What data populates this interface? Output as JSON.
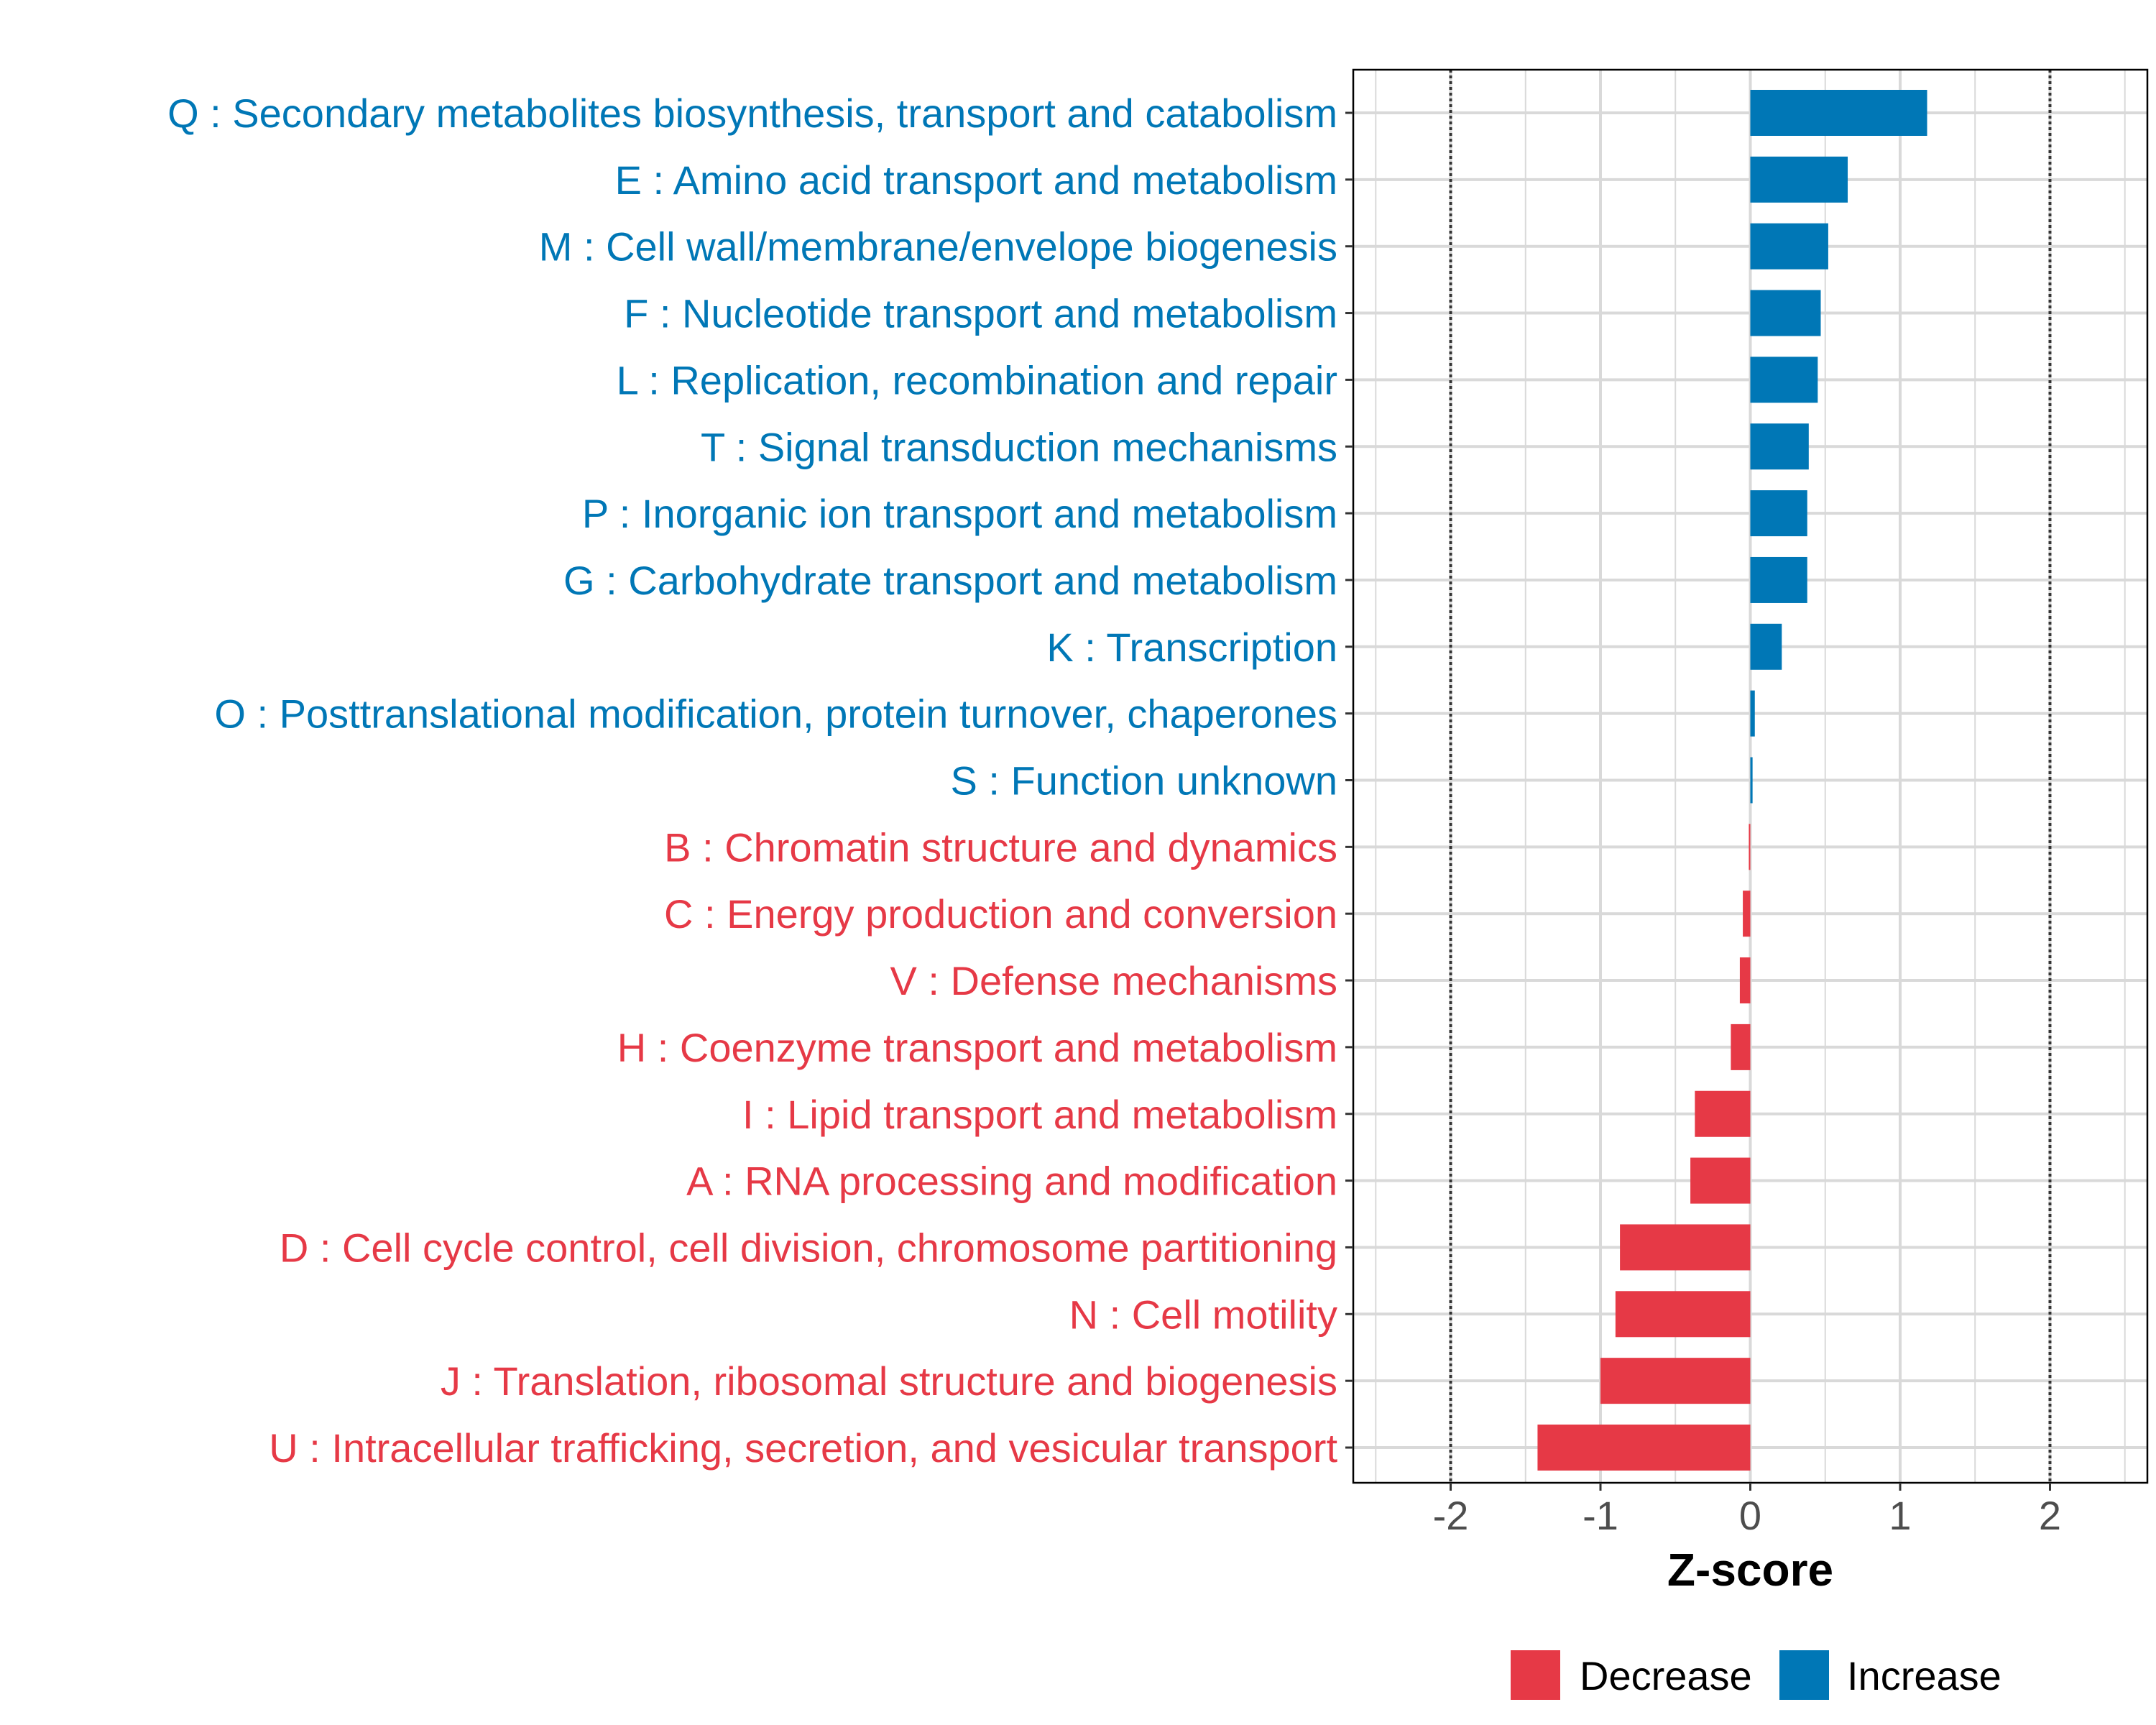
{
  "chart_data": {
    "type": "bar",
    "orientation": "horizontal",
    "title": "",
    "xlabel": "Z-score",
    "ylabel": "",
    "xlim": [
      -2.65,
      2.65
    ],
    "xticks": [
      -2,
      -1,
      0,
      1,
      2
    ],
    "xtick_labels": [
      "-2",
      "-1",
      "0",
      "1",
      "2"
    ],
    "reference_lines": [
      -2,
      2
    ],
    "grid": true,
    "categories": [
      "Q : Secondary metabolites biosynthesis, transport and catabolism",
      "E : Amino acid transport and metabolism",
      "M : Cell wall/membrane/envelope biogenesis",
      "F : Nucleotide transport and metabolism",
      "L : Replication, recombination and repair",
      "T : Signal transduction mechanisms",
      "P : Inorganic ion transport and metabolism",
      "G : Carbohydrate transport and metabolism",
      "K : Transcription",
      "O : Posttranslational modification, protein turnover, chaperones",
      "S : Function unknown",
      "B : Chromatin structure and dynamics",
      "C : Energy production and conversion",
      "V : Defense mechanisms",
      "H : Coenzyme transport and metabolism",
      "I : Lipid transport and metabolism",
      "A : RNA processing and modification",
      "D : Cell cycle control, cell division, chromosome partitioning",
      "N : Cell motility",
      "J : Translation, ribosomal structure and biogenesis",
      "U : Intracellular trafficking, secretion, and vesicular transport"
    ],
    "values": [
      1.18,
      0.65,
      0.52,
      0.47,
      0.45,
      0.39,
      0.38,
      0.38,
      0.21,
      0.03,
      0.015,
      -0.01,
      -0.05,
      -0.07,
      -0.13,
      -0.37,
      -0.4,
      -0.87,
      -0.9,
      -1.0,
      -1.42
    ],
    "legend": {
      "position": "bottom",
      "entries": [
        {
          "label": "Decrease",
          "color": "#E63946"
        },
        {
          "label": "Increase",
          "color": "#0077B6"
        }
      ]
    },
    "colors": {
      "increase": "#0077B6",
      "decrease": "#E63946",
      "grid": "#d9d9d9",
      "axis": "#000000",
      "tick_text": "#4d4d4d"
    }
  }
}
